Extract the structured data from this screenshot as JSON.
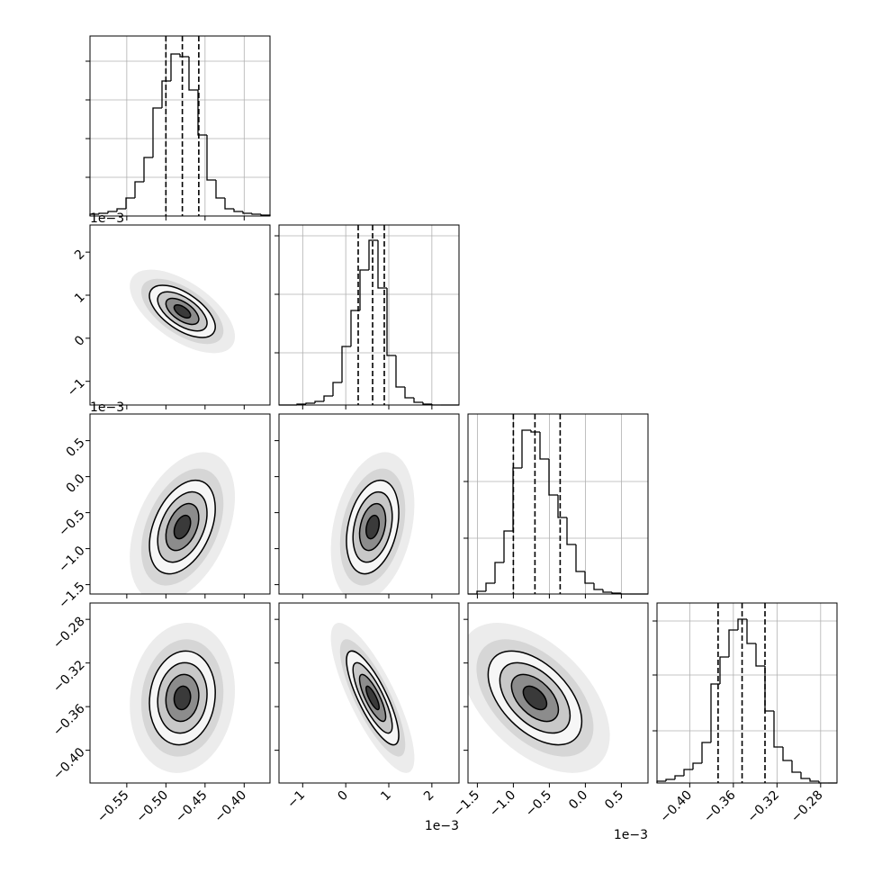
{
  "chart_data": {
    "type": "corner",
    "levels": [
      0.5,
      1,
      1.5,
      2
    ],
    "hist_color": "#000000",
    "contour_color": "#000000",
    "params": [
      {
        "lim": [
          -0.597,
          -0.367
        ],
        "ticks": [
          {
            "value": -0.55,
            "label": "−0.55"
          },
          {
            "value": -0.5,
            "label": "−0.50"
          },
          {
            "value": -0.45,
            "label": "−0.45"
          },
          {
            "value": -0.4,
            "label": "−0.40"
          }
        ],
        "quantiles": [
          -0.5,
          -0.479,
          -0.458
        ],
        "bins": [
          -0.597,
          -0.5855,
          -0.574,
          -0.5625,
          -0.551,
          -0.5395,
          -0.528,
          -0.5165,
          -0.505,
          -0.4935,
          -0.482,
          -0.4705,
          -0.459,
          -0.4475,
          -0.436,
          -0.4245,
          -0.413,
          -0.4015,
          -0.39,
          -0.3785,
          -0.367
        ],
        "counts": [
          2,
          3,
          5,
          8,
          20,
          38,
          65,
          120,
          150,
          180,
          177,
          140,
          90,
          40,
          20,
          8,
          5,
          3,
          2,
          1
        ],
        "hist_ylim": [
          0,
          200
        ],
        "hist_yticks": [
          43,
          86,
          129,
          172
        ]
      },
      {
        "lim": [
          -1.55,
          2.63
        ],
        "ticks": [
          {
            "value": -1,
            "label": "−1"
          },
          0,
          1,
          2
        ],
        "offset_label": "1e−3",
        "quantiles": [
          0.289,
          0.624,
          0.895
        ],
        "bins": [
          -1.55,
          -1.341,
          -1.132,
          -0.923,
          -0.714,
          -0.505,
          -0.296,
          -0.087,
          0.122,
          0.331,
          0.54,
          0.749,
          0.958,
          1.167,
          1.376,
          1.585,
          1.794,
          2.003,
          2.212,
          2.421,
          2.63
        ],
        "counts": [
          0,
          0,
          1,
          2,
          4,
          10,
          25,
          65,
          105,
          150,
          183,
          130,
          55,
          20,
          8,
          3,
          1,
          0,
          0,
          0
        ],
        "hist_ylim": [
          0,
          200
        ],
        "hist_yticks": [
          58,
          123,
          188
        ]
      },
      {
        "lim": [
          -1.63,
          0.87
        ],
        "ticks": [
          {
            "value": -1.5,
            "label": "−1.5"
          },
          {
            "value": -1,
            "label": "−1.0"
          },
          {
            "value": -0.5,
            "label": "−0.5"
          },
          {
            "value": 0,
            "label": "0.0"
          },
          0.5
        ],
        "offset_label": "1e−3",
        "quantiles": [
          -1.0,
          -0.7,
          -0.35
        ],
        "bins": [
          -1.63,
          -1.505,
          -1.38,
          -1.255,
          -1.13,
          -1.005,
          -0.88,
          -0.755,
          -0.63,
          -0.505,
          -0.38,
          -0.255,
          -0.13,
          -0.005,
          0.12,
          0.245,
          0.37,
          0.495,
          0.62,
          0.745,
          0.87
        ],
        "counts": [
          0,
          3,
          12,
          35,
          70,
          140,
          182,
          180,
          150,
          110,
          85,
          55,
          25,
          12,
          5,
          2,
          1,
          0,
          0,
          0
        ],
        "hist_ylim": [
          0,
          200
        ],
        "hist_yticks": [
          62,
          125
        ]
      },
      {
        "lim": [
          -0.43,
          -0.265
        ],
        "ticks": [
          {
            "value": -0.4,
            "label": "−0.40"
          },
          {
            "value": -0.36,
            "label": "−0.36"
          },
          {
            "value": -0.32,
            "label": "−0.32"
          },
          {
            "value": -0.28,
            "label": "−0.28"
          }
        ],
        "quantiles": [
          -0.374,
          -0.352,
          -0.331
        ],
        "bins": [
          -0.43,
          -0.42175,
          -0.4135,
          -0.40525,
          -0.397,
          -0.38875,
          -0.3805,
          -0.37225,
          -0.364,
          -0.35575,
          -0.3475,
          -0.33925,
          -0.331,
          -0.32275,
          -0.3145,
          -0.30625,
          -0.298,
          -0.28975,
          -0.2815,
          -0.27325,
          -0.265
        ],
        "counts": [
          2,
          4,
          8,
          15,
          22,
          45,
          110,
          140,
          170,
          182,
          155,
          130,
          80,
          40,
          25,
          12,
          5,
          2,
          0,
          0
        ],
        "hist_ylim": [
          0,
          200
        ],
        "hist_yticks": [
          58,
          120,
          180
        ]
      }
    ],
    "pairs": [
      {
        "x": 0,
        "y": 1,
        "rho": -0.6
      },
      {
        "x": 0,
        "y": 2,
        "rho": 0.4
      },
      {
        "x": 1,
        "y": 2,
        "rho": 0.3
      },
      {
        "x": 0,
        "y": 3,
        "rho": 0.1
      },
      {
        "x": 1,
        "y": 3,
        "rho": -0.8
      },
      {
        "x": 2,
        "y": 3,
        "rho": -0.5
      }
    ]
  }
}
